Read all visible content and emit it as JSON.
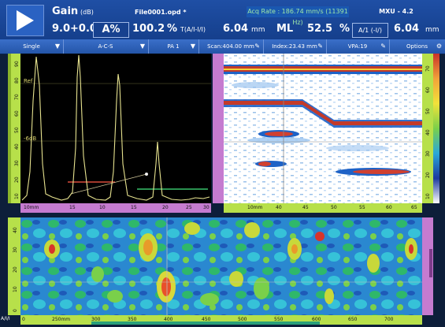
{
  "header": {
    "gain_label": "Gain",
    "gain_unit": "(dB)",
    "gain_value": "9.0",
    "gain_offset": "+0.0",
    "file_name": "File0001.opd *",
    "acq_rate": "Acq Rate : 186.74 mm/s (11391 Hz)",
    "device": "MXU - 4.2",
    "mode": "A%",
    "amp_value": "100.2",
    "amp_unit": "%",
    "t_label": "T(A/I-I/I)",
    "t_value": "6.04",
    "t_unit": "mm",
    "ml_label": "ML",
    "ml_value": "52.5",
    "ml_unit": "%",
    "a1_label": "A/1 (-I/)",
    "a1_value": "6.04",
    "a1_unit": "mm"
  },
  "toolbar": {
    "items": [
      {
        "label": "Single"
      },
      {
        "label": "A-C-S"
      },
      {
        "label": "PA 1"
      },
      {
        "label": "Scan:404.00 mm"
      },
      {
        "label": "Index:23.43 mm"
      },
      {
        "label": "VPA:19"
      },
      {
        "label": "Options"
      }
    ]
  },
  "ascan": {
    "ref_label": "Ref",
    "db_label": "-6dB",
    "ruler_left": [
      "10",
      "20",
      "30",
      "40",
      "50",
      "60",
      "70",
      "80",
      "90"
    ],
    "ruler_bottom": [
      "10mm",
      "15",
      "10",
      "15",
      "20",
      "25",
      "30"
    ]
  },
  "bscan": {
    "ruler_bottom": [
      "10mm",
      "40",
      "45",
      "50",
      "55",
      "60",
      "65"
    ],
    "ruler_right": [
      "10",
      "20",
      "30",
      "40",
      "50",
      "60",
      "70"
    ]
  },
  "cscan": {
    "ruler_left": [
      "0",
      "10",
      "20",
      "30",
      "40"
    ],
    "ruler_bottom": [
      "0",
      "250mm",
      "300",
      "350",
      "400",
      "450",
      "500",
      "550",
      "600",
      "650",
      "700"
    ],
    "axis_label": "A/I/I"
  },
  "colors": {
    "header_bg": "#1f4fa5",
    "toolbar_bg": "#2455a8",
    "ruler_green": "#b7e04a",
    "ruler_pink": "#c57bd0",
    "signal": "#e7e38f"
  }
}
